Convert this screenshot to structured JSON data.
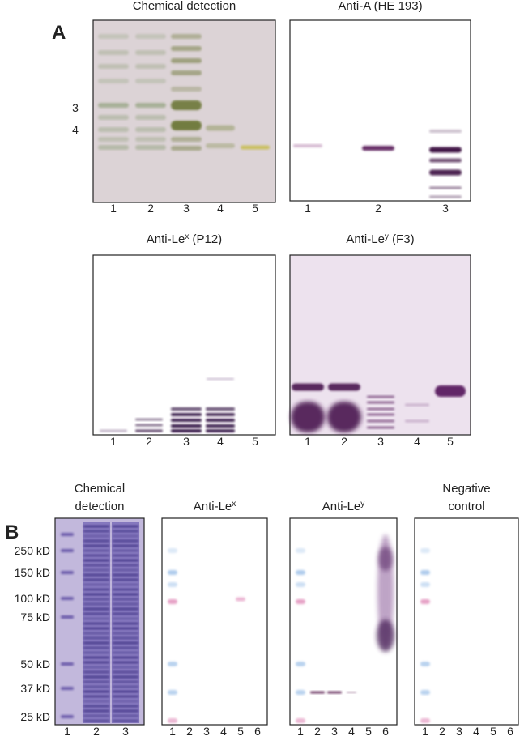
{
  "panel_a": {
    "label": "A",
    "blots": [
      {
        "title_lines": [
          [
            {
              "text": "Chemical detection"
            }
          ]
        ],
        "lanes": [
          "1",
          "2",
          "3",
          "4",
          "5"
        ],
        "band_labels": [
          "3",
          "4"
        ]
      },
      {
        "title_lines": [
          [
            {
              "text": "Anti-A (HE 193)"
            }
          ]
        ],
        "lanes": [
          "1",
          "2",
          "3"
        ]
      },
      {
        "title_lines": [
          [
            {
              "text": "Anti-Le"
            },
            {
              "text": "x",
              "sup": true
            },
            {
              "text": " (P12)"
            }
          ]
        ],
        "lanes": [
          "1",
          "2",
          "3",
          "4",
          "5"
        ]
      },
      {
        "title_lines": [
          [
            {
              "text": "Anti-Le"
            },
            {
              "text": "y",
              "sup": true
            },
            {
              "text": " (F3)"
            }
          ]
        ],
        "lanes": [
          "1",
          "2",
          "3",
          "4",
          "5"
        ]
      }
    ]
  },
  "panel_b": {
    "label": "B",
    "mw_labels": [
      "250 kD",
      "150 kD",
      "100 kD",
      "75 kD",
      "50 kD",
      "37 kD",
      "25 kD"
    ],
    "blots": [
      {
        "title_lines": [
          [
            {
              "text": "Chemical"
            }
          ],
          [
            {
              "text": "detection"
            }
          ]
        ],
        "lanes": [
          "1",
          "2",
          "3"
        ]
      },
      {
        "title_lines": [
          [
            {
              "text": "Anti-Le"
            },
            {
              "text": "x",
              "sup": true
            }
          ]
        ],
        "lanes": [
          "1",
          "2",
          "3",
          "4",
          "5",
          "6"
        ]
      },
      {
        "title_lines": [
          [
            {
              "text": "Anti-Le"
            },
            {
              "text": "y",
              "sup": true
            }
          ]
        ],
        "lanes": [
          "1",
          "2",
          "3",
          "4",
          "5",
          "6"
        ]
      },
      {
        "title_lines": [
          [
            {
              "text": "Negative"
            }
          ],
          [
            {
              "text": "control"
            }
          ]
        ],
        "lanes": [
          "1",
          "2",
          "3",
          "4",
          "5",
          "6"
        ]
      }
    ]
  }
}
